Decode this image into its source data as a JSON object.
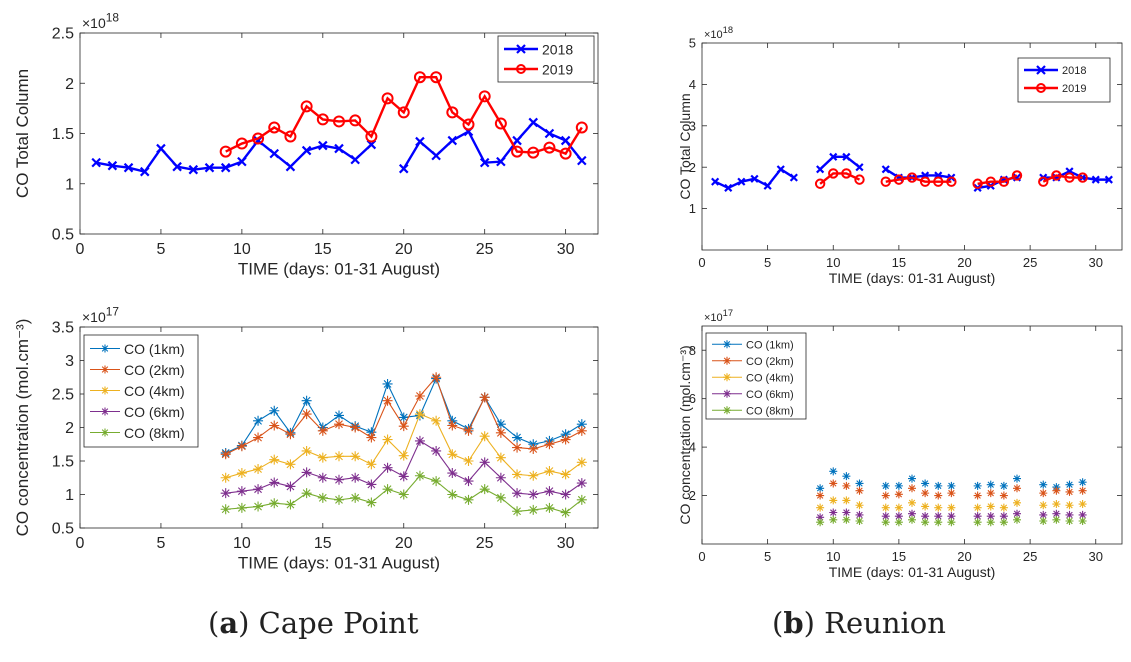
{
  "captions": [
    {
      "letter": "a",
      "text": "Cape Point"
    },
    {
      "letter": "b",
      "text": "Reunion"
    }
  ],
  "colors": {
    "c2018": "#0000ff",
    "c2019": "#ff0000",
    "h1": "#0072bd",
    "h2": "#d95319",
    "h4": "#edb120",
    "h6": "#7e2f8e",
    "h8": "#77ac30"
  },
  "chart_data": [
    {
      "type": "line",
      "panel": "a-top",
      "xlabel": "TIME (days: 01-31 August)",
      "ylabel": "CO Total Column",
      "multiplier": "×10^18",
      "xlim": [
        0,
        32
      ],
      "ylim": [
        0.5,
        2.5
      ],
      "xticks": [
        0,
        5,
        10,
        15,
        20,
        25,
        30
      ],
      "yticks": [
        0.5,
        1,
        1.5,
        2,
        2.5
      ],
      "grid": false,
      "legend": "top-right",
      "series": [
        {
          "name": "2018",
          "marker": "x",
          "color": "#0000ff",
          "x": [
            1,
            2,
            3,
            4,
            5,
            6,
            7,
            8,
            9,
            10,
            11,
            12,
            13,
            14,
            15,
            16,
            17,
            18,
            null,
            20,
            21,
            22,
            23,
            24,
            25,
            26,
            27,
            28,
            29,
            30,
            31
          ],
          "y": [
            1.21,
            1.18,
            1.16,
            1.12,
            1.35,
            1.17,
            1.14,
            1.16,
            1.16,
            1.22,
            1.43,
            1.3,
            1.17,
            1.33,
            1.38,
            1.35,
            1.24,
            1.39,
            null,
            1.15,
            1.42,
            1.28,
            1.43,
            1.52,
            1.21,
            1.22,
            1.43,
            1.61,
            1.5,
            1.43,
            1.23
          ]
        },
        {
          "name": "2019",
          "marker": "o",
          "color": "#ff0000",
          "x": [
            9,
            10,
            11,
            12,
            13,
            14,
            15,
            16,
            17,
            18,
            19,
            20,
            21,
            22,
            23,
            24,
            25,
            26,
            27,
            28,
            29,
            30,
            31
          ],
          "y": [
            1.32,
            1.4,
            1.45,
            1.56,
            1.47,
            1.77,
            1.64,
            1.62,
            1.63,
            1.47,
            1.85,
            1.71,
            2.06,
            2.06,
            1.71,
            1.59,
            1.87,
            1.6,
            1.32,
            1.31,
            1.36,
            1.3,
            1.56
          ]
        }
      ]
    },
    {
      "type": "line",
      "panel": "a-bottom",
      "xlabel": "TIME (days: 01-31 August)",
      "ylabel": "CO concentration (mol.cm⁻³)",
      "multiplier": "×10^17",
      "xlim": [
        0,
        32
      ],
      "ylim": [
        0.5,
        3.5
      ],
      "xticks": [
        0,
        5,
        10,
        15,
        20,
        25,
        30
      ],
      "yticks": [
        0.5,
        1,
        1.5,
        2,
        2.5,
        3,
        3.5
      ],
      "grid": false,
      "legend": "top-left",
      "x": [
        9,
        10,
        11,
        12,
        13,
        14,
        15,
        16,
        17,
        18,
        19,
        20,
        21,
        22,
        23,
        24,
        25,
        26,
        27,
        28,
        29,
        30,
        31
      ],
      "series": [
        {
          "name": "CO (1km)",
          "color": "#0072bd",
          "marker": "*",
          "y": [
            1.62,
            1.73,
            2.1,
            2.25,
            1.92,
            2.4,
            2.0,
            2.18,
            2.02,
            1.93,
            2.65,
            2.15,
            2.18,
            2.73,
            2.1,
            1.98,
            2.45,
            2.05,
            1.85,
            1.75,
            1.8,
            1.9,
            2.05
          ]
        },
        {
          "name": "CO (2km)",
          "color": "#d95319",
          "marker": "*",
          "y": [
            1.6,
            1.72,
            1.85,
            2.03,
            1.9,
            2.2,
            1.95,
            2.05,
            2.0,
            1.85,
            2.4,
            2.02,
            2.47,
            2.75,
            2.03,
            1.95,
            2.45,
            1.92,
            1.7,
            1.68,
            1.75,
            1.82,
            1.95
          ]
        },
        {
          "name": "CO (4km)",
          "color": "#edb120",
          "marker": "*",
          "y": [
            1.25,
            1.32,
            1.38,
            1.52,
            1.45,
            1.65,
            1.55,
            1.57,
            1.57,
            1.45,
            1.82,
            1.58,
            2.2,
            2.1,
            1.6,
            1.5,
            1.87,
            1.55,
            1.3,
            1.28,
            1.35,
            1.3,
            1.48
          ]
        },
        {
          "name": "CO (6km)",
          "color": "#7e2f8e",
          "marker": "*",
          "y": [
            1.02,
            1.05,
            1.08,
            1.18,
            1.12,
            1.33,
            1.25,
            1.22,
            1.25,
            1.15,
            1.4,
            1.27,
            1.8,
            1.65,
            1.32,
            1.2,
            1.48,
            1.25,
            1.02,
            1.0,
            1.05,
            1.0,
            1.17
          ]
        },
        {
          "name": "CO (8km)",
          "color": "#77ac30",
          "marker": "*",
          "y": [
            0.78,
            0.8,
            0.82,
            0.87,
            0.85,
            1.02,
            0.95,
            0.92,
            0.95,
            0.88,
            1.08,
            1.0,
            1.28,
            1.2,
            1.0,
            0.92,
            1.08,
            0.95,
            0.75,
            0.77,
            0.8,
            0.73,
            0.92
          ]
        }
      ]
    },
    {
      "type": "line",
      "panel": "b-top",
      "xlabel": "TIME (days: 01-31 August)",
      "ylabel": "CO Total Column",
      "multiplier": "×10^18",
      "xlim": [
        0,
        32
      ],
      "ylim": [
        0,
        5
      ],
      "xticks": [
        0,
        5,
        10,
        15,
        20,
        25,
        30
      ],
      "yticks": [
        1,
        2,
        3,
        4,
        5
      ],
      "grid": false,
      "legend": "top-right",
      "series": [
        {
          "name": "2018",
          "marker": "x",
          "color": "#0000ff",
          "x": [
            1,
            2,
            3,
            4,
            5,
            6,
            7,
            null,
            9,
            10,
            11,
            12,
            null,
            14,
            15,
            16,
            17,
            18,
            19,
            null,
            21,
            22,
            23,
            24,
            null,
            26,
            27,
            28,
            29,
            30,
            31
          ],
          "y": [
            1.65,
            1.5,
            1.65,
            1.72,
            1.55,
            1.95,
            1.75,
            null,
            1.95,
            2.25,
            2.25,
            2.0,
            null,
            1.95,
            1.75,
            1.75,
            1.8,
            1.8,
            1.75,
            null,
            1.5,
            1.55,
            1.7,
            1.75,
            null,
            1.75,
            1.75,
            1.9,
            1.75,
            1.7,
            1.7
          ]
        },
        {
          "name": "2019",
          "marker": "o",
          "color": "#ff0000",
          "x": [
            9,
            10,
            11,
            12,
            null,
            14,
            15,
            16,
            17,
            18,
            19,
            null,
            21,
            22,
            23,
            24,
            null,
            26,
            27,
            28,
            29
          ],
          "y": [
            1.6,
            1.85,
            1.85,
            1.7,
            null,
            1.65,
            1.7,
            1.75,
            1.65,
            1.65,
            1.65,
            null,
            1.6,
            1.65,
            1.65,
            1.8,
            null,
            1.65,
            1.8,
            1.75,
            1.75
          ]
        }
      ]
    },
    {
      "type": "scatter",
      "panel": "b-bottom",
      "xlabel": "TIME (days: 01-31 August)",
      "ylabel": "CO concentration (mol.cm⁻³)",
      "multiplier": "×10^17",
      "xlim": [
        0,
        32
      ],
      "ylim": [
        0,
        9
      ],
      "xticks": [
        0,
        5,
        10,
        15,
        20,
        25,
        30
      ],
      "yticks": [
        2,
        4,
        6,
        8
      ],
      "grid": false,
      "legend": "top-left",
      "x": [
        9,
        10,
        11,
        12,
        null,
        14,
        15,
        16,
        17,
        18,
        19,
        null,
        21,
        22,
        23,
        24,
        null,
        26,
        27,
        28,
        29
      ],
      "series": [
        {
          "name": "CO (1km)",
          "color": "#0072bd",
          "marker": "*",
          "y": [
            2.3,
            3.0,
            2.8,
            2.5,
            null,
            2.4,
            2.4,
            2.7,
            2.5,
            2.4,
            2.4,
            null,
            2.4,
            2.45,
            2.4,
            2.7,
            null,
            2.45,
            2.35,
            2.45,
            2.55
          ]
        },
        {
          "name": "CO (2km)",
          "color": "#d95319",
          "marker": "*",
          "y": [
            2.0,
            2.5,
            2.4,
            2.2,
            null,
            2.0,
            2.05,
            2.3,
            2.1,
            2.0,
            2.1,
            null,
            2.0,
            2.1,
            2.0,
            2.3,
            null,
            2.1,
            2.2,
            2.15,
            2.2
          ]
        },
        {
          "name": "CO (4km)",
          "color": "#edb120",
          "marker": "*",
          "y": [
            1.5,
            1.8,
            1.8,
            1.6,
            null,
            1.5,
            1.5,
            1.7,
            1.55,
            1.5,
            1.5,
            null,
            1.5,
            1.55,
            1.5,
            1.7,
            null,
            1.6,
            1.65,
            1.6,
            1.65
          ]
        },
        {
          "name": "CO (6km)",
          "color": "#7e2f8e",
          "marker": "*",
          "y": [
            1.1,
            1.3,
            1.3,
            1.2,
            null,
            1.15,
            1.15,
            1.25,
            1.15,
            1.15,
            1.15,
            null,
            1.15,
            1.15,
            1.15,
            1.25,
            null,
            1.2,
            1.25,
            1.2,
            1.2
          ]
        },
        {
          "name": "CO (8km)",
          "color": "#77ac30",
          "marker": "*",
          "y": [
            0.9,
            1.0,
            1.0,
            0.95,
            null,
            0.9,
            0.9,
            1.0,
            0.9,
            0.9,
            0.9,
            null,
            0.9,
            0.9,
            0.9,
            1.0,
            null,
            0.95,
            1.0,
            0.95,
            0.95
          ]
        }
      ]
    }
  ]
}
